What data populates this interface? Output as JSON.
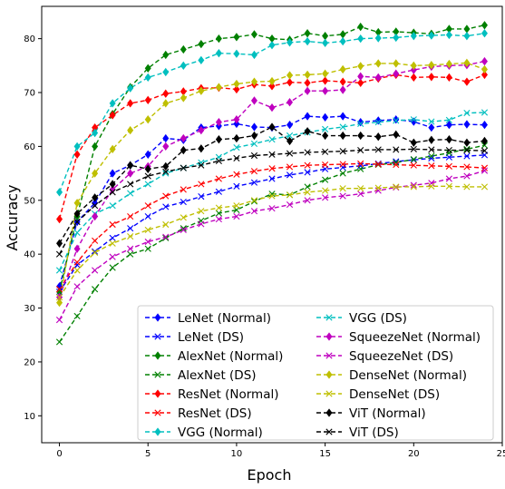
{
  "chart_data": {
    "type": "line",
    "xlabel": "Epoch",
    "ylabel": "Accuracy",
    "xlim": [
      -1,
      25
    ],
    "ylim": [
      5,
      86
    ],
    "xticks": [
      0,
      5,
      10,
      15,
      20,
      25
    ],
    "yticks": [
      10,
      20,
      30,
      40,
      50,
      60,
      70,
      80
    ],
    "grid": false,
    "legend_position": "lower-right",
    "legend_columns": 2,
    "x": [
      0,
      1,
      2,
      3,
      4,
      5,
      6,
      7,
      8,
      9,
      10,
      11,
      12,
      13,
      14,
      15,
      16,
      17,
      18,
      19,
      20,
      21,
      22,
      23,
      24
    ],
    "series": [
      {
        "name": "LeNet (Normal)",
        "color": "#0000ff",
        "dash": "dashed",
        "marker": "diamond",
        "values": [
          34,
          46,
          49.5,
          55,
          56.5,
          58.5,
          61.5,
          61.2,
          63.5,
          63.8,
          64.2,
          63.6,
          63.5,
          64,
          65.6,
          65.4,
          65.6,
          64.5,
          64.8,
          65,
          64.6,
          63.5,
          64,
          64.1,
          64
        ]
      },
      {
        "name": "LeNet (DS)",
        "color": "#0000ff",
        "dash": "dashed",
        "marker": "x",
        "values": [
          33,
          38,
          40.5,
          43,
          44.8,
          47,
          48.8,
          49.7,
          50.7,
          51.6,
          52.6,
          53.3,
          54,
          54.7,
          55.2,
          55.8,
          56.1,
          56.4,
          56.8,
          57.2,
          57.5,
          57.8,
          58,
          58.2,
          58.4
        ]
      },
      {
        "name": "AlexNet (Normal)",
        "color": "#008000",
        "dash": "dashed",
        "marker": "diamond",
        "values": [
          33,
          47,
          60,
          66,
          71,
          74.5,
          77,
          78,
          79,
          80,
          80.3,
          80.8,
          80,
          79.8,
          81,
          80.5,
          80.8,
          82.2,
          81.2,
          81.3,
          81.1,
          80.9,
          81.8,
          81.8,
          82.5
        ]
      },
      {
        "name": "AlexNet (DS)",
        "color": "#008000",
        "dash": "dashed",
        "marker": "x",
        "values": [
          23.7,
          28.5,
          33.5,
          37.5,
          40,
          41,
          43,
          44.8,
          46.2,
          47.6,
          48.2,
          49.8,
          51.2,
          51,
          52.5,
          53.8,
          55,
          55.8,
          56.6,
          57,
          57.6,
          58.2,
          58.8,
          59.5,
          60.2
        ]
      },
      {
        "name": "ResNet (Normal)",
        "color": "#ff0000",
        "dash": "dashed",
        "marker": "diamond",
        "values": [
          46.5,
          58.5,
          63.5,
          65.8,
          68,
          68.6,
          69.8,
          70.2,
          70.8,
          70.9,
          70.6,
          71.5,
          71.2,
          71.9,
          71.8,
          72.2,
          72,
          71.8,
          72.6,
          73.3,
          72.8,
          72.9,
          72.8,
          72,
          73.3
        ]
      },
      {
        "name": "ResNet (DS)",
        "color": "#ff0000",
        "dash": "dashed",
        "marker": "x",
        "values": [
          33.5,
          38.5,
          42.5,
          45.5,
          47,
          49,
          50.8,
          52,
          53,
          54,
          54.8,
          55.4,
          55.9,
          56.2,
          56.5,
          56.6,
          56.7,
          56.8,
          56.7,
          56.6,
          56.5,
          56.4,
          56.3,
          56.2,
          56
        ]
      },
      {
        "name": "VGG (Normal)",
        "color": "#00bfbf",
        "dash": "dashed",
        "marker": "diamond",
        "values": [
          51.5,
          60,
          62.5,
          68,
          70.8,
          72.8,
          73.8,
          75,
          76,
          77.3,
          77.2,
          77,
          78.8,
          79.3,
          79.5,
          79.2,
          79.5,
          80,
          80.1,
          80.2,
          80.5,
          80.6,
          80.7,
          80.5,
          81
        ]
      },
      {
        "name": "VGG (DS)",
        "color": "#00bfbf",
        "dash": "dashed",
        "marker": "x",
        "values": [
          37,
          44,
          47.5,
          49,
          51.3,
          53,
          55,
          56,
          57,
          58,
          59.8,
          60.5,
          61.3,
          62,
          62.6,
          63.2,
          63.6,
          64.2,
          64.5,
          64.8,
          65,
          64.6,
          64.9,
          66.2,
          66.3
        ]
      },
      {
        "name": "SqueezeNet (Normal)",
        "color": "#bf00bf",
        "dash": "dashed",
        "marker": "diamond",
        "values": [
          32,
          41,
          47,
          52,
          55,
          56.3,
          60,
          61.5,
          63,
          64.5,
          65,
          68.5,
          67.2,
          68.2,
          70.3,
          70.3,
          70.5,
          73,
          72.8,
          73.5,
          74.2,
          74.8,
          75,
          75.1,
          75.8
        ]
      },
      {
        "name": "SqueezeNet (DS)",
        "color": "#bf00bf",
        "dash": "dashed",
        "marker": "x",
        "values": [
          27.8,
          34,
          37,
          39.5,
          41,
          42.3,
          43.2,
          44.5,
          45.6,
          46.5,
          47,
          48,
          48.5,
          49.2,
          50,
          50.5,
          50.8,
          51.2,
          51.8,
          52.4,
          52.8,
          53.2,
          54,
          54.5,
          55.5
        ]
      },
      {
        "name": "DenseNet (Normal)",
        "color": "#bfbf00",
        "dash": "dashed",
        "marker": "diamond",
        "values": [
          31,
          49.5,
          55,
          59.5,
          63,
          65,
          68,
          69,
          70.3,
          71,
          71.6,
          72,
          72.1,
          73.2,
          73.3,
          73.5,
          74.3,
          74.9,
          75.4,
          75.4,
          75,
          75.1,
          75.3,
          75.5,
          74.3
        ]
      },
      {
        "name": "DenseNet (DS)",
        "color": "#bfbf00",
        "dash": "dashed",
        "marker": "x",
        "values": [
          32,
          37,
          40.3,
          42,
          43.3,
          44.5,
          45.5,
          46.8,
          48,
          48.6,
          49,
          50,
          50.8,
          51,
          51.5,
          51.8,
          52.2,
          52.2,
          52.3,
          52.5,
          52.5,
          52.6,
          52.6,
          52.5,
          52.5
        ]
      },
      {
        "name": "ViT (Normal)",
        "color": "#000000",
        "dash": "dashed",
        "marker": "diamond",
        "values": [
          42,
          47.5,
          50.5,
          53,
          56.5,
          55.8,
          56.3,
          59.3,
          59.6,
          61.3,
          61.5,
          62,
          63.6,
          61,
          62.8,
          62,
          62,
          62,
          61.8,
          62.2,
          60.7,
          61.2,
          61.3,
          60.7,
          61
        ]
      },
      {
        "name": "ViT (DS)",
        "color": "#000000",
        "dash": "dashed",
        "marker": "x",
        "values": [
          40,
          46,
          49,
          51.5,
          53,
          54.5,
          55.3,
          56,
          56.5,
          57.3,
          57.8,
          58.3,
          58.5,
          58.7,
          58.9,
          59,
          59.1,
          59.3,
          59.4,
          59.4,
          59.5,
          59.4,
          59.3,
          59.3,
          59.2
        ]
      }
    ]
  }
}
